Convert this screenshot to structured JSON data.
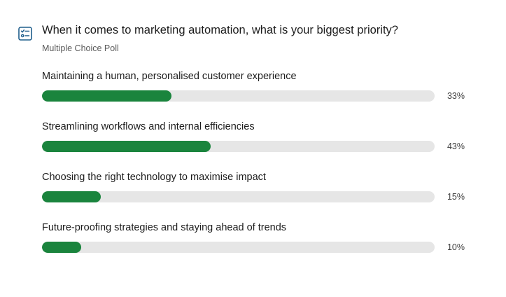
{
  "poll": {
    "icon": "checklist-icon",
    "accent_color": "#1a843d",
    "track_color": "#e6e6e6",
    "icon_color": "#1f5e8c",
    "title": "When it comes to marketing automation, what is your biggest priority?",
    "type_label": "Multiple Choice Poll",
    "options": [
      {
        "label": "Maintaining a human, personalised customer experience",
        "percent_label": "33%",
        "fill_fraction": 0.33
      },
      {
        "label": "Streamlining workflows and internal efficiencies",
        "percent_label": "43%",
        "fill_fraction": 0.43
      },
      {
        "label": "Choosing the right technology to maximise impact",
        "percent_label": "15%",
        "fill_fraction": 0.15
      },
      {
        "label": "Future-proofing strategies and staying ahead of trends",
        "percent_label": "10%",
        "fill_fraction": 0.1
      }
    ]
  }
}
